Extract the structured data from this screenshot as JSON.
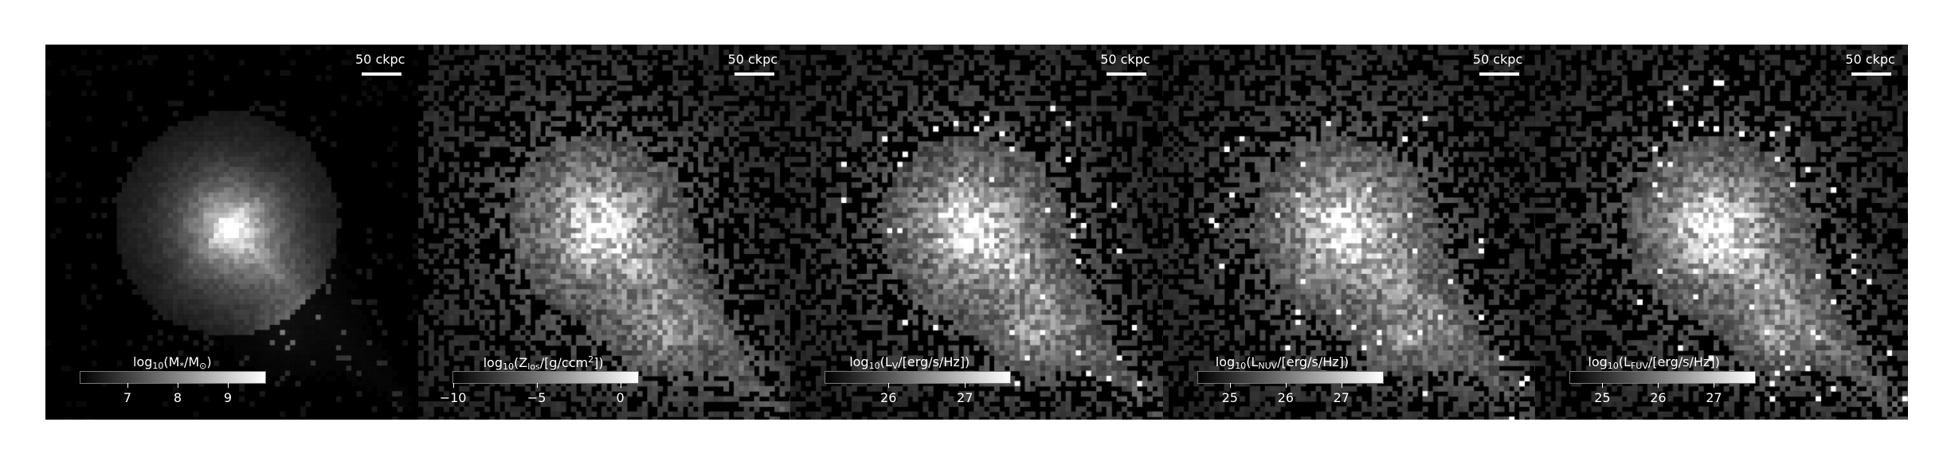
{
  "panels": [
    {
      "scalebar": "50 ckpc",
      "colorbar": {
        "label": {
          "pre": "log",
          "sub": "10",
          "mid": "(M",
          "sub2": "*",
          "post": "/M",
          "sub3": "⊙",
          "end": ")"
        },
        "ticks": [
          "7",
          "8",
          "9"
        ]
      }
    },
    {
      "scalebar": "50 ckpc",
      "colorbar": {
        "label": {
          "pre": "log",
          "sub": "10",
          "mid": "(Z",
          "sub2": "los",
          "post": "/[g/ccm",
          "sup": "2",
          "end": "])"
        },
        "ticks": [
          "−10",
          "−5",
          "0"
        ]
      }
    },
    {
      "scalebar": "50 ckpc",
      "colorbar": {
        "label": {
          "pre": "log",
          "sub": "10",
          "mid": "(L",
          "sub2": "V",
          "post": "/[erg/s/Hz])",
          "end": ""
        },
        "ticks": [
          "26",
          "27"
        ]
      }
    },
    {
      "scalebar": "50 ckpc",
      "colorbar": {
        "label": {
          "pre": "log",
          "sub": "10",
          "mid": "(L",
          "sub2": "NUV",
          "post": "/[erg/s/Hz])",
          "end": ""
        },
        "ticks": [
          "25",
          "26",
          "27"
        ]
      }
    },
    {
      "scalebar": "50 ckpc",
      "colorbar": {
        "label": {
          "pre": "log",
          "sub": "10",
          "mid": "(L",
          "sub2": "FUV",
          "post": "/[erg/s/Hz])",
          "end": ""
        },
        "ticks": [
          "25",
          "26",
          "27"
        ]
      }
    }
  ]
}
